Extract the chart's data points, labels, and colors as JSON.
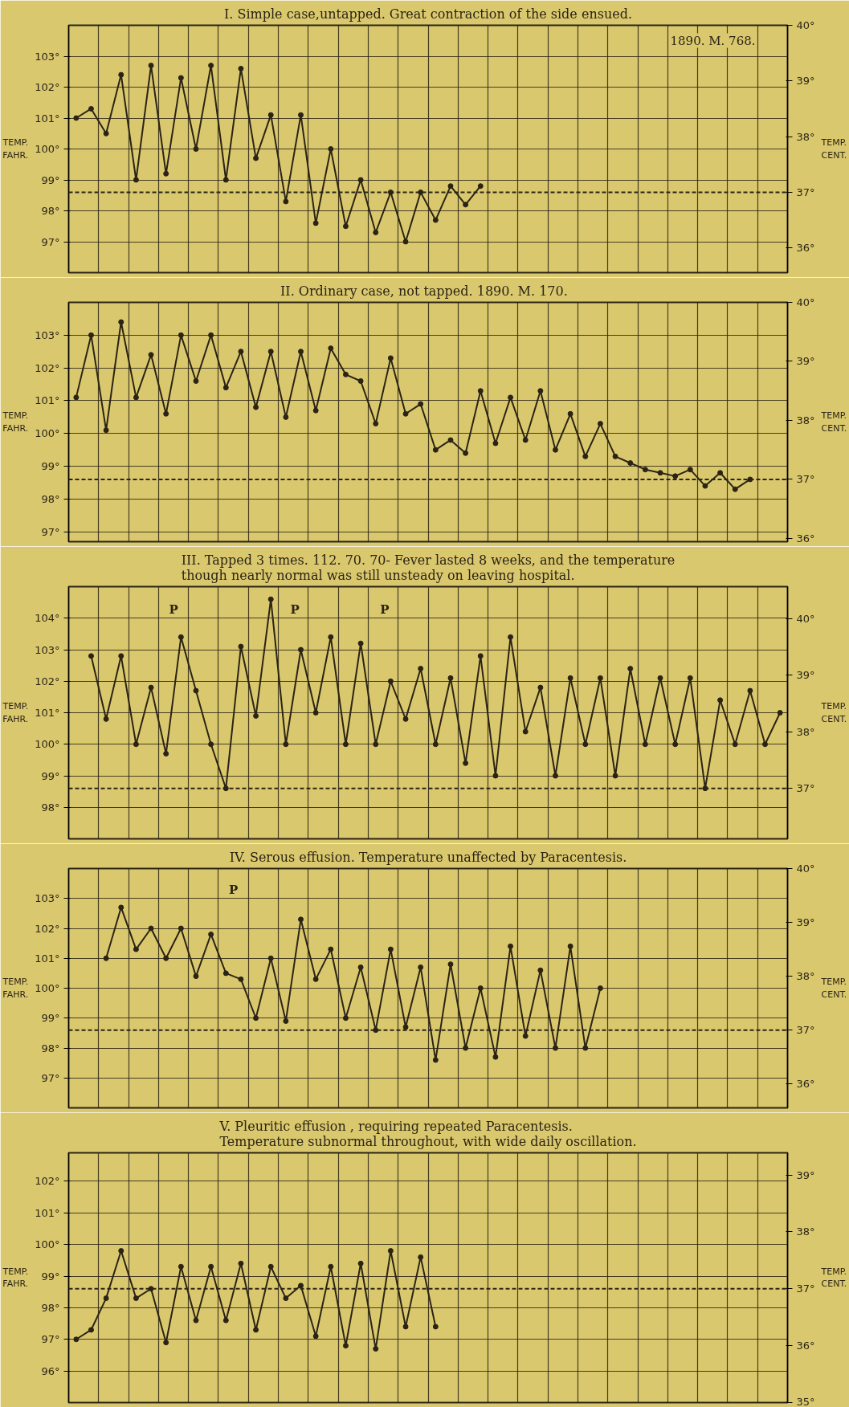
{
  "chart_data": [
    {
      "type": "line",
      "title": "I. Simple case,untapped. Great contraction of the side ensued.",
      "ylabel": "TEMP. FAHR.",
      "y2label": "TEMP. CENT.",
      "color": "#2b2415",
      "marker": "circle",
      "line_style": "solid",
      "grid": true,
      "categories": [
        null,
        null,
        null,
        null,
        null,
        null,
        null,
        null,
        null,
        null,
        null,
        null,
        null,
        null,
        null,
        null,
        null,
        null,
        null,
        null,
        null,
        null,
        null,
        null,
        null,
        null,
        null,
        null,
        null,
        null,
        null,
        null,
        null,
        null,
        null,
        null,
        null,
        null,
        null,
        null,
        null,
        null,
        null,
        null,
        null,
        null,
        null,
        null
      ],
      "values": [
        101.0,
        101.3,
        100.5,
        102.4,
        99.0,
        102.7,
        99.2,
        102.3,
        100.0,
        102.7,
        99.0,
        102.6,
        99.7,
        101.1,
        98.3,
        101.1,
        97.6,
        100.0,
        97.5,
        99.0,
        97.3,
        98.6,
        97.0,
        98.6,
        97.7,
        98.8,
        98.2,
        98.8,
        null,
        null,
        null,
        null,
        null,
        null,
        null,
        null,
        null,
        null,
        null,
        null,
        null,
        null,
        null,
        null,
        null,
        null,
        null,
        null
      ],
      "ylim": [
        96,
        104
      ],
      "yticks": [
        {
          "value": 97,
          "label": "97°"
        },
        {
          "value": 98,
          "label": "98°"
        },
        {
          "value": 99,
          "label": "99°"
        },
        {
          "value": 100,
          "label": "100°"
        },
        {
          "value": 101,
          "label": "101°"
        },
        {
          "value": 102,
          "label": "102°"
        },
        {
          "value": 103,
          "label": "103°"
        }
      ],
      "y2lim": [
        35.56,
        40.0
      ],
      "y2ticks": [
        {
          "value": 36,
          "label": "36°"
        },
        {
          "value": 37,
          "label": "37°"
        },
        {
          "value": 38,
          "label": "38°"
        },
        {
          "value": 39,
          "label": "39°"
        },
        {
          "value": 40,
          "label": "40°"
        }
      ],
      "ref_lines": [
        {
          "axis": "y",
          "value": 98.6,
          "color": "#2b2415",
          "line_style": "dashed"
        }
      ],
      "annotations": [
        "1890. M. 768."
      ]
    },
    {
      "type": "line",
      "title": "II. Ordinary case, not tapped.   1890. M. 170.",
      "ylabel": "TEMP. FAHR.",
      "y2label": "TEMP. CENT.",
      "color": "#2b2415",
      "marker": "circle",
      "line_style": "solid",
      "grid": true,
      "categories": [
        null,
        null,
        null,
        null,
        null,
        null,
        null,
        null,
        null,
        null,
        null,
        null,
        null,
        null,
        null,
        null,
        null,
        null,
        null,
        null,
        null,
        null,
        null,
        null,
        null,
        null,
        null,
        null,
        null,
        null,
        null,
        null,
        null,
        null,
        null,
        null,
        null,
        null,
        null,
        null,
        null,
        null,
        null,
        null,
        null,
        null,
        null,
        null
      ],
      "values": [
        101.1,
        103.0,
        100.1,
        103.4,
        101.1,
        102.4,
        100.6,
        103.0,
        101.6,
        103.0,
        101.4,
        102.5,
        100.8,
        102.5,
        100.5,
        102.5,
        100.7,
        102.6,
        101.8,
        101.6,
        100.3,
        102.3,
        100.6,
        100.9,
        99.5,
        99.8,
        99.4,
        101.3,
        99.7,
        101.1,
        99.8,
        101.3,
        99.5,
        100.6,
        99.3,
        100.3,
        99.3,
        99.1,
        98.9,
        98.8,
        98.7,
        98.9,
        98.4,
        98.8,
        98.3,
        98.6,
        null,
        null
      ],
      "ylim": [
        96.7,
        104
      ],
      "yticks": [
        {
          "value": 97,
          "label": "97°"
        },
        {
          "value": 98,
          "label": "98°"
        },
        {
          "value": 99,
          "label": "99°"
        },
        {
          "value": 100,
          "label": "100°"
        },
        {
          "value": 101,
          "label": "101°"
        },
        {
          "value": 102,
          "label": "102°"
        },
        {
          "value": 103,
          "label": "103°"
        }
      ],
      "y2lim": [
        35.94,
        40.0
      ],
      "y2ticks": [
        {
          "value": 36,
          "label": "36°"
        },
        {
          "value": 37,
          "label": "37°"
        },
        {
          "value": 38,
          "label": "38°"
        },
        {
          "value": 39,
          "label": "39°"
        },
        {
          "value": 40,
          "label": "40°"
        }
      ],
      "ref_lines": [
        {
          "axis": "y",
          "value": 98.6,
          "color": "#2b2415",
          "line_style": "dashed"
        }
      ]
    },
    {
      "type": "line",
      "title": "III. Tapped 3 times. 112. 70. 70- Fever lasted 8 weeks, and the temperature\nthough nearly normal was still unsteady on leaving hospital.",
      "ylabel": "TEMP. FAHR.",
      "y2label": "TEMP. CENT.",
      "color": "#2b2415",
      "marker": "circle",
      "line_style": "solid",
      "grid": true,
      "categories": [
        null,
        null,
        null,
        null,
        null,
        null,
        null,
        null,
        null,
        null,
        null,
        null,
        null,
        null,
        null,
        null,
        null,
        null,
        null,
        null,
        null,
        null,
        null,
        null,
        null,
        null,
        null,
        null,
        null,
        null,
        null,
        null,
        null,
        null,
        null,
        null,
        null,
        null,
        null,
        null,
        null,
        null,
        null,
        null,
        null,
        null,
        null,
        null
      ],
      "values": [
        null,
        102.8,
        100.8,
        102.8,
        100.0,
        101.8,
        99.7,
        103.4,
        101.7,
        100.0,
        98.6,
        103.1,
        100.9,
        104.6,
        100.0,
        103.0,
        101.0,
        103.4,
        100.0,
        103.2,
        100.0,
        102.0,
        100.8,
        102.4,
        100.0,
        102.1,
        99.4,
        102.8,
        99.0,
        103.4,
        100.4,
        101.8,
        99.0,
        102.1,
        100.0,
        102.1,
        99.0,
        102.4,
        100.0,
        102.1,
        100.0,
        102.1,
        98.6,
        101.4,
        100.0,
        101.7,
        100.0,
        101.0
      ],
      "ylim": [
        97,
        105
      ],
      "yticks": [
        {
          "value": 98,
          "label": "98°"
        },
        {
          "value": 99,
          "label": "99°"
        },
        {
          "value": 100,
          "label": "100°"
        },
        {
          "value": 101,
          "label": "101°"
        },
        {
          "value": 102,
          "label": "102°"
        },
        {
          "value": 103,
          "label": "103°"
        },
        {
          "value": 104,
          "label": "104°"
        }
      ],
      "y2lim": [
        36.11,
        40.56
      ],
      "y2ticks": [
        {
          "value": 37,
          "label": "37°"
        },
        {
          "value": 38,
          "label": "38°"
        },
        {
          "value": 39,
          "label": "39°"
        },
        {
          "value": 40,
          "label": "40°"
        }
      ],
      "ref_lines": [
        {
          "axis": "y",
          "value": 98.6,
          "color": "#2b2415",
          "line_style": "dashed"
        }
      ],
      "annotations": [
        "P",
        "P",
        "P"
      ]
    },
    {
      "type": "line",
      "title": "IV. Serous effusion. Temperature unaffected by Paracentesis.",
      "ylabel": "TEMP. FAHR.",
      "y2label": "TEMP. CENT.",
      "color": "#2b2415",
      "marker": "circle",
      "line_style": "solid",
      "grid": true,
      "categories": [
        null,
        null,
        null,
        null,
        null,
        null,
        null,
        null,
        null,
        null,
        null,
        null,
        null,
        null,
        null,
        null,
        null,
        null,
        null,
        null,
        null,
        null,
        null,
        null,
        null,
        null,
        null,
        null,
        null,
        null,
        null,
        null,
        null,
        null,
        null,
        null,
        null,
        null,
        null,
        null,
        null,
        null,
        null,
        null,
        null,
        null,
        null,
        null
      ],
      "values": [
        null,
        null,
        101.0,
        102.7,
        101.3,
        102.0,
        101.0,
        102.0,
        100.4,
        101.8,
        100.5,
        100.3,
        99.0,
        101.0,
        98.9,
        102.3,
        100.3,
        101.3,
        99.0,
        100.7,
        98.6,
        101.3,
        98.7,
        100.7,
        97.6,
        100.8,
        98.0,
        100.0,
        97.7,
        101.4,
        98.4,
        100.6,
        98.0,
        101.4,
        98.0,
        100.0,
        null,
        null,
        null,
        null,
        null,
        null,
        null,
        null,
        null,
        null,
        null,
        null
      ],
      "ylim": [
        96,
        104
      ],
      "yticks": [
        {
          "value": 97,
          "label": "97°"
        },
        {
          "value": 98,
          "label": "98°"
        },
        {
          "value": 99,
          "label": "99°"
        },
        {
          "value": 100,
          "label": "100°"
        },
        {
          "value": 101,
          "label": "101°"
        },
        {
          "value": 102,
          "label": "102°"
        },
        {
          "value": 103,
          "label": "103°"
        }
      ],
      "y2lim": [
        35.56,
        40.0
      ],
      "y2ticks": [
        {
          "value": 36,
          "label": "36°"
        },
        {
          "value": 37,
          "label": "37°"
        },
        {
          "value": 38,
          "label": "38°"
        },
        {
          "value": 39,
          "label": "39°"
        },
        {
          "value": 40,
          "label": "40°"
        }
      ],
      "ref_lines": [
        {
          "axis": "y",
          "value": 98.6,
          "color": "#2b2415",
          "line_style": "dashed"
        }
      ],
      "annotations": [
        "P"
      ]
    },
    {
      "type": "line",
      "title": "V. Pleuritic effusion , requiring repeated Paracentesis.\nTemperature subnormal throughout, with wide daily oscillation.",
      "ylabel": "TEMP. FAHR.",
      "y2label": "TEMP. CENT.",
      "color": "#2b2415",
      "marker": "circle",
      "line_style": "solid",
      "grid": true,
      "categories": [
        null,
        null,
        null,
        null,
        null,
        null,
        null,
        null,
        null,
        null,
        null,
        null,
        null,
        null,
        null,
        null,
        null,
        null,
        null,
        null,
        null,
        null,
        null,
        null,
        null,
        null,
        null,
        null,
        null,
        null,
        null,
        null,
        null,
        null,
        null,
        null,
        null,
        null,
        null,
        null,
        null,
        null,
        null,
        null,
        null,
        null,
        null,
        null
      ],
      "values": [
        97.0,
        97.3,
        98.3,
        99.8,
        98.3,
        98.6,
        96.9,
        99.3,
        97.6,
        99.3,
        97.6,
        99.4,
        97.3,
        99.3,
        98.3,
        98.7,
        97.1,
        99.3,
        96.8,
        99.4,
        96.7,
        99.8,
        97.4,
        99.6,
        97.4,
        null,
        null,
        null,
        null,
        null,
        null,
        null,
        null,
        null,
        null,
        null,
        null,
        null,
        null,
        null,
        null,
        null,
        null,
        null,
        null,
        null,
        null,
        null
      ],
      "ylim": [
        95,
        102.9
      ],
      "yticks": [
        {
          "value": 96,
          "label": "96°"
        },
        {
          "value": 97,
          "label": "97°"
        },
        {
          "value": 98,
          "label": "98°"
        },
        {
          "value": 99,
          "label": "99°"
        },
        {
          "value": 100,
          "label": "100°"
        },
        {
          "value": 101,
          "label": "101°"
        },
        {
          "value": 102,
          "label": "102°"
        }
      ],
      "y2lim": [
        35.0,
        39.39
      ],
      "y2ticks": [
        {
          "value": 35,
          "label": "35°"
        },
        {
          "value": 36,
          "label": "36°"
        },
        {
          "value": 37,
          "label": "37°"
        },
        {
          "value": 38,
          "label": "38°"
        },
        {
          "value": 39,
          "label": "39°"
        }
      ],
      "ref_lines": [
        {
          "axis": "y",
          "value": 98.6,
          "color": "#2b2415",
          "line_style": "dashed"
        }
      ]
    }
  ]
}
